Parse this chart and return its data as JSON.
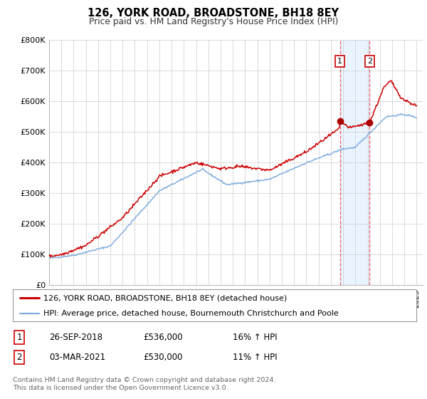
{
  "title": "126, YORK ROAD, BROADSTONE, BH18 8EY",
  "subtitle": "Price paid vs. HM Land Registry's House Price Index (HPI)",
  "ylim": [
    0,
    800000
  ],
  "yticks": [
    0,
    100000,
    200000,
    300000,
    400000,
    500000,
    600000,
    700000,
    800000
  ],
  "ytick_labels": [
    "£0",
    "£100K",
    "£200K",
    "£300K",
    "£400K",
    "£500K",
    "£600K",
    "£700K",
    "£800K"
  ],
  "xlim_start": 1995.0,
  "xlim_end": 2025.5,
  "line1_color": "#cc0000",
  "line2_color": "#7aaadd",
  "line1_label": "126, YORK ROAD, BROADSTONE, BH18 8EY (detached house)",
  "line2_label": "HPI: Average price, detached house, Bournemouth Christchurch and Poole",
  "marker_color": "#aa0000",
  "transaction1_x": 2018.74,
  "transaction1_y": 536000,
  "transaction2_x": 2021.17,
  "transaction2_y": 530000,
  "transaction1_date": "26-SEP-2018",
  "transaction1_price": "£536,000",
  "transaction1_hpi": "16% ↑ HPI",
  "transaction2_date": "03-MAR-2021",
  "transaction2_price": "£530,000",
  "transaction2_hpi": "11% ↑ HPI",
  "bg_color": "#ffffff",
  "grid_color": "#cccccc",
  "span_color": "#ddeeff",
  "vline_color": "#ee4444",
  "footer_text": "Contains HM Land Registry data © Crown copyright and database right 2024.\nThis data is licensed under the Open Government Licence v3.0."
}
